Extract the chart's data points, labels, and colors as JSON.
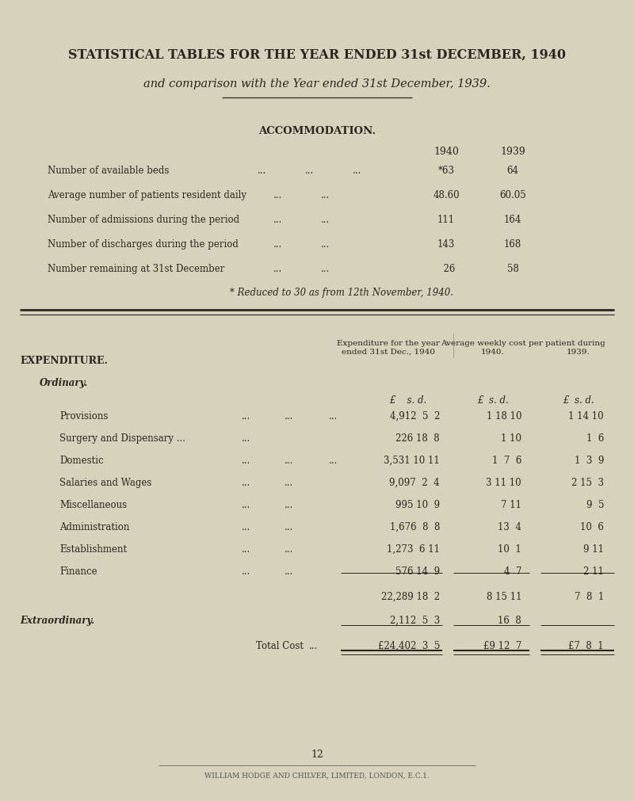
{
  "bg_color": "#d6d2bc",
  "title1": "STATISTICAL TABLES FOR THE YEAR ENDED 31st DECEMBER, 1940",
  "title2": "and comparison with the Year ended 31st December, 1939.",
  "accommodation_title": "ACCOMMODATION.",
  "footnote": "* Reduced to 30 as from 12th November, 1940.",
  "exp_title": "EXPENDITURE.",
  "ordinary_label": "Ordinary.",
  "extraordinary_label": "Extraordinary.",
  "total_label": "Total Cost",
  "page_num": "12",
  "footer": "WILLIAM HODGE AND CHILVER, LIMITED, LONDON, E.C.1.",
  "text_color": "#2a2520"
}
